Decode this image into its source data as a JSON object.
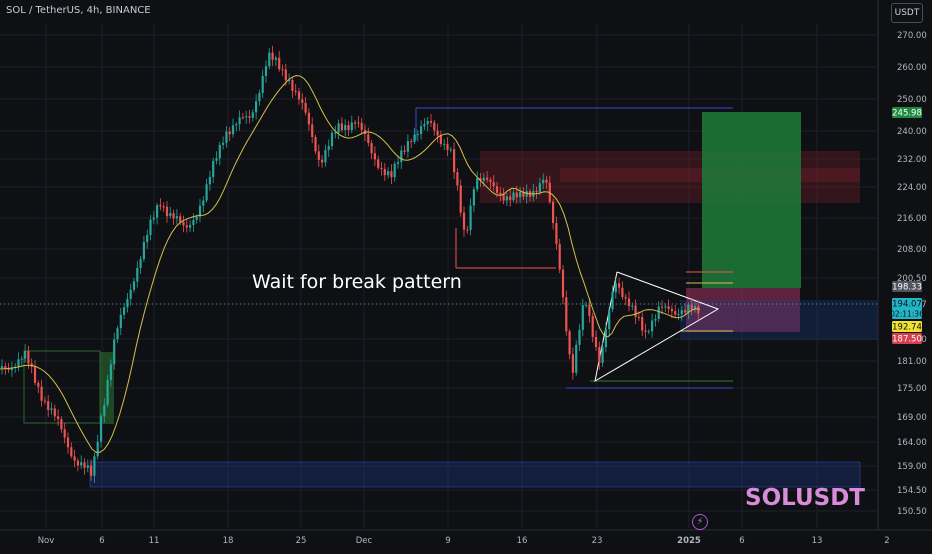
{
  "header": {
    "title": "SOL / TetherUS, 4h, BINANCE",
    "currency": "USDT"
  },
  "annotations": {
    "note": "Wait for break pattern",
    "symbol_watermark": "SOLUSDT",
    "bolt_glyph": "⚡"
  },
  "colors": {
    "bull": "#26a69a",
    "bear": "#ef5350",
    "ma": "#d4c04a",
    "ma_alt": "#e8a03a",
    "zone_blue": "#1e3a8a",
    "zone_red": "#7a1f2b",
    "target_green": "#1e7a3a",
    "accent_purple": "#d78bd8"
  },
  "chart_data": {
    "type": "candlestick",
    "y_ticks": [
      "270.00",
      "260.00",
      "250.00",
      "240.00",
      "232.00",
      "224.00",
      "216.00",
      "208.00",
      "200.50",
      "194.07",
      "187.50",
      "181.00",
      "175.00",
      "169.00",
      "164.00",
      "159.00",
      "154.50",
      "150.50"
    ],
    "x_ticks": [
      "Nov",
      "6",
      "11",
      "18",
      "25",
      "Dec",
      "9",
      "16",
      "23",
      "2025",
      "6",
      "13",
      "2"
    ],
    "price_badges": [
      {
        "label": "245.98",
        "kind": "target"
      },
      {
        "label": "198.33",
        "kind": "level"
      },
      {
        "label": "194.07",
        "kind": "last"
      },
      {
        "label": "02:11:36",
        "kind": "countdown"
      },
      {
        "label": "192.74",
        "kind": "entry"
      },
      {
        "label": "187.50",
        "kind": "stop"
      }
    ]
  }
}
